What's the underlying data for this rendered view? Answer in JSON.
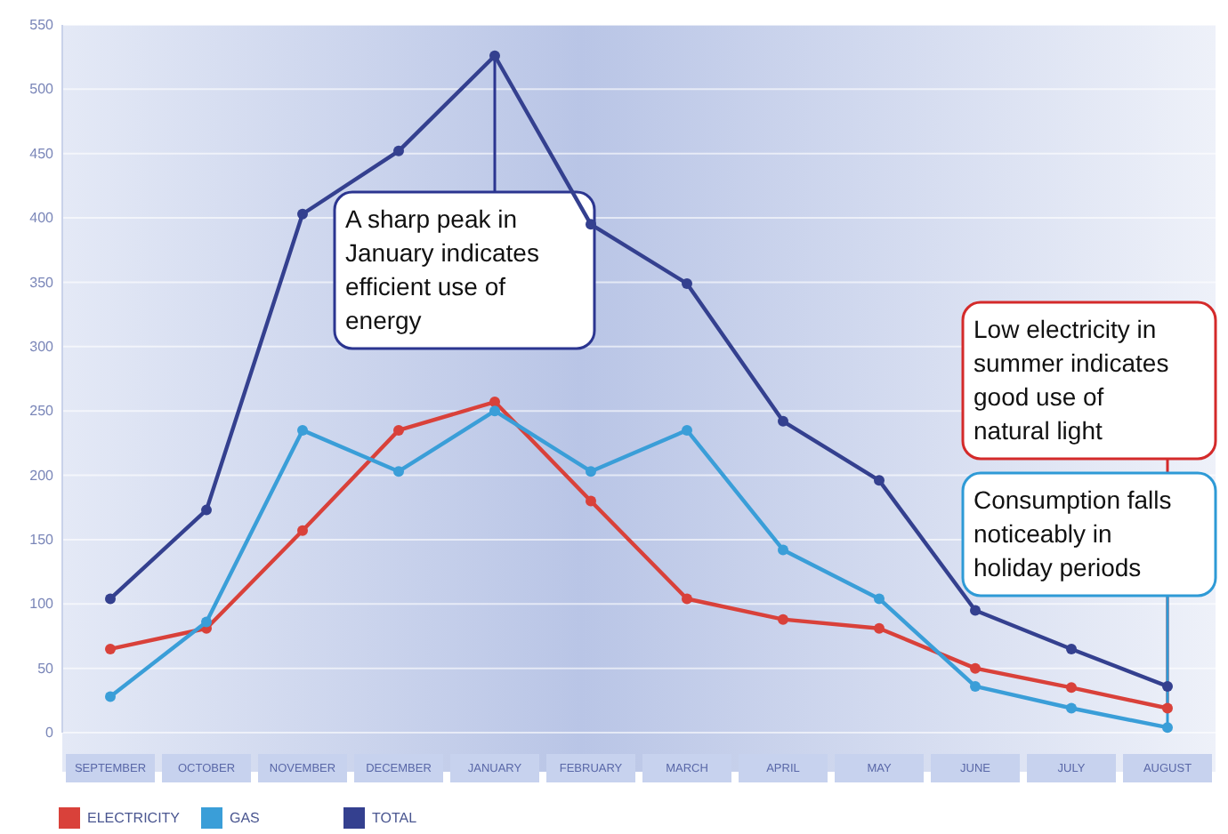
{
  "chart_data": {
    "type": "line",
    "categories": [
      "SEPTEMBER",
      "OCTOBER",
      "NOVEMBER",
      "DECEMBER",
      "JANUARY",
      "FEBRUARY",
      "MARCH",
      "APRIL",
      "MAY",
      "JUNE",
      "JULY",
      "AUGUST"
    ],
    "series": [
      {
        "name": "ELECTRICITY",
        "color": "#d9413a",
        "values": [
          65,
          81,
          157,
          235,
          257,
          180,
          104,
          88,
          81,
          50,
          35,
          19
        ]
      },
      {
        "name": "GAS",
        "color": "#3a9ed8",
        "values": [
          28,
          86,
          235,
          203,
          250,
          203,
          235,
          142,
          104,
          36,
          19,
          4
        ]
      },
      {
        "name": "TOTAL",
        "color": "#34408f",
        "values": [
          104,
          173,
          403,
          452,
          526,
          395,
          349,
          242,
          196,
          95,
          65,
          36
        ]
      }
    ],
    "ylim": [
      0,
      550
    ],
    "yticks": [
      0,
      50,
      100,
      150,
      200,
      250,
      300,
      350,
      400,
      450,
      500,
      550
    ],
    "grid": "y",
    "marker": "circle",
    "line_style": "solid",
    "legend": "bottom left",
    "annotations": [
      {
        "text": "A sharp peak in January indicates efficient use of energy",
        "x": "JANUARY",
        "y": 526
      },
      {
        "text": "Low electricity in summer indicates good use of natural light",
        "x": "AUGUST",
        "y": 19
      },
      {
        "text": "Consumption falls noticeably in holiday periods",
        "x": "AUGUST",
        "y": 4
      }
    ]
  }
}
